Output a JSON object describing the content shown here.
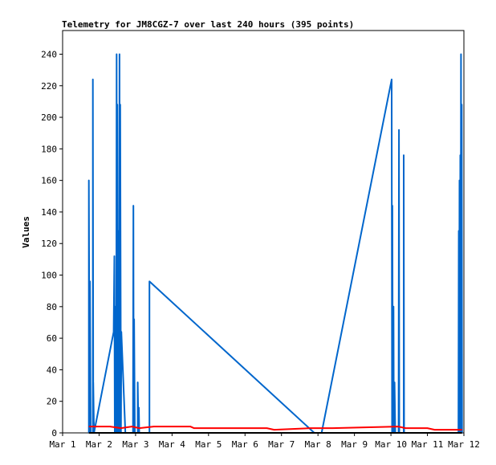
{
  "chart_data": {
    "type": "line",
    "title": "Telemetry for JM8CGZ-7 over last 240 hours (395 points)",
    "xlabel": "",
    "ylabel": "Values",
    "xlim": [
      0,
      11
    ],
    "ylim": [
      0,
      255
    ],
    "x_ticks": [
      {
        "value": 0,
        "label": "Mar 1"
      },
      {
        "value": 1,
        "label": "Mar 2"
      },
      {
        "value": 2,
        "label": "Mar 3"
      },
      {
        "value": 3,
        "label": "Mar 4"
      },
      {
        "value": 4,
        "label": "Mar 5"
      },
      {
        "value": 5,
        "label": "Mar 6"
      },
      {
        "value": 6,
        "label": "Mar 7"
      },
      {
        "value": 7,
        "label": "Mar 8"
      },
      {
        "value": 8,
        "label": "Mar 9"
      },
      {
        "value": 9,
        "label": "Mar 10"
      },
      {
        "value": 10,
        "label": "Mar 11"
      },
      {
        "value": 11,
        "label": "Mar 12"
      }
    ],
    "y_ticks": [
      0,
      20,
      40,
      60,
      80,
      100,
      120,
      140,
      160,
      180,
      200,
      220,
      240
    ],
    "grid": false,
    "series": [
      {
        "color": "#0066cc",
        "points": [
          [
            0.72,
            0
          ],
          [
            0.72,
            160
          ],
          [
            0.74,
            0
          ],
          [
            0.75,
            96
          ],
          [
            0.77,
            0
          ],
          [
            0.83,
            0
          ],
          [
            0.83,
            224
          ],
          [
            0.84,
            0
          ],
          [
            0.84,
            32
          ],
          [
            0.86,
            0
          ],
          [
            1.4,
            64
          ],
          [
            1.42,
            112
          ],
          [
            1.43,
            0
          ],
          [
            1.44,
            80
          ],
          [
            1.47,
            0
          ],
          [
            1.48,
            240
          ],
          [
            1.49,
            0
          ],
          [
            1.5,
            208
          ],
          [
            1.52,
            0
          ],
          [
            1.53,
            128
          ],
          [
            1.55,
            0
          ],
          [
            1.56,
            240
          ],
          [
            1.57,
            0
          ],
          [
            1.58,
            208
          ],
          [
            1.6,
            0
          ],
          [
            1.61,
            64
          ],
          [
            1.72,
            0
          ],
          [
            1.93,
            0
          ],
          [
            1.94,
            144
          ],
          [
            1.95,
            0
          ],
          [
            1.96,
            72
          ],
          [
            1.98,
            0
          ],
          [
            2.06,
            0
          ],
          [
            2.06,
            32
          ],
          [
            2.08,
            0
          ],
          [
            2.09,
            16
          ],
          [
            2.1,
            0
          ],
          [
            2.38,
            0
          ],
          [
            2.38,
            96
          ],
          [
            6.9,
            0
          ],
          [
            7.1,
            0
          ],
          [
            9.02,
            224
          ],
          [
            9.03,
            0
          ],
          [
            9.04,
            144
          ],
          [
            9.05,
            0
          ],
          [
            9.07,
            80
          ],
          [
            9.08,
            0
          ],
          [
            9.1,
            32
          ],
          [
            9.12,
            0
          ],
          [
            9.21,
            0
          ],
          [
            9.22,
            192
          ],
          [
            9.23,
            0
          ],
          [
            9.35,
            0
          ],
          [
            9.35,
            176
          ],
          [
            9.36,
            0
          ],
          [
            10.85,
            0
          ],
          [
            10.86,
            128
          ],
          [
            10.87,
            0
          ],
          [
            10.88,
            160
          ],
          [
            10.89,
            0
          ],
          [
            10.9,
            176
          ],
          [
            10.91,
            0
          ],
          [
            10.92,
            240
          ],
          [
            10.93,
            0
          ],
          [
            10.94,
            208
          ],
          [
            10.95,
            0
          ]
        ]
      },
      {
        "color": "#ff0000",
        "points": [
          [
            0.72,
            4
          ],
          [
            1.1,
            4
          ],
          [
            1.3,
            4
          ],
          [
            1.6,
            3
          ],
          [
            1.9,
            4
          ],
          [
            2.1,
            3
          ],
          [
            2.5,
            4
          ],
          [
            3.5,
            4
          ],
          [
            3.6,
            3
          ],
          [
            5.6,
            3
          ],
          [
            5.8,
            2
          ],
          [
            6.8,
            3
          ],
          [
            7.4,
            3
          ],
          [
            9.2,
            4
          ],
          [
            9.4,
            3
          ],
          [
            10.0,
            3
          ],
          [
            10.2,
            2
          ],
          [
            10.95,
            2
          ]
        ]
      },
      {
        "color": "#000000",
        "points": [
          [
            0.72,
            0
          ],
          [
            10.95,
            0
          ]
        ]
      }
    ]
  }
}
